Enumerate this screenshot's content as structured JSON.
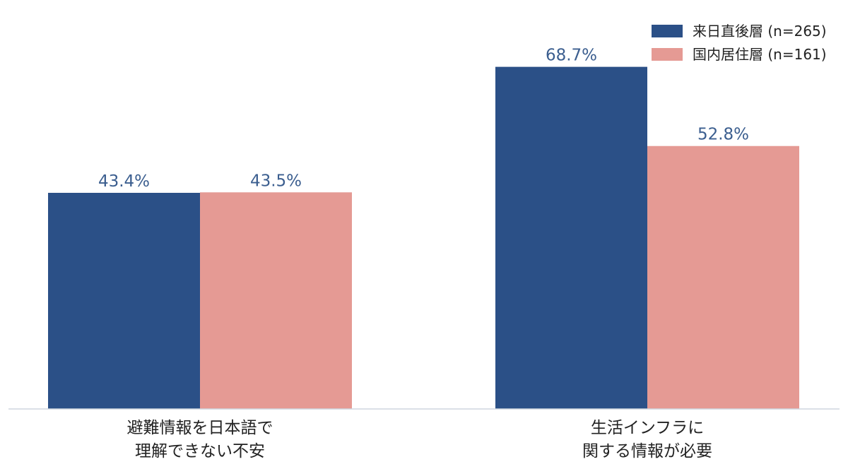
{
  "chart_data": {
    "type": "bar",
    "title": "",
    "xlabel": "",
    "ylabel": "",
    "ylim": [
      0,
      75
    ],
    "grid": false,
    "legend_position": "top-right",
    "categories": [
      [
        "避難情報を日本語で",
        "理解できない不安"
      ],
      [
        "生活インフラに",
        "関する情報が必要"
      ]
    ],
    "series": [
      {
        "name": "来日直後層 (n=265)",
        "color": "#2b5087",
        "values": [
          43.4,
          68.7
        ],
        "labels": [
          "43.4%",
          "68.7%"
        ]
      },
      {
        "name": "国内居住層 (n=161)",
        "color": "#e59a94",
        "values": [
          43.5,
          52.8
        ],
        "labels": [
          "43.5%",
          "52.8%"
        ]
      }
    ],
    "value_label_color": "#3b5e8f",
    "axis_color": "#cfd6df"
  }
}
